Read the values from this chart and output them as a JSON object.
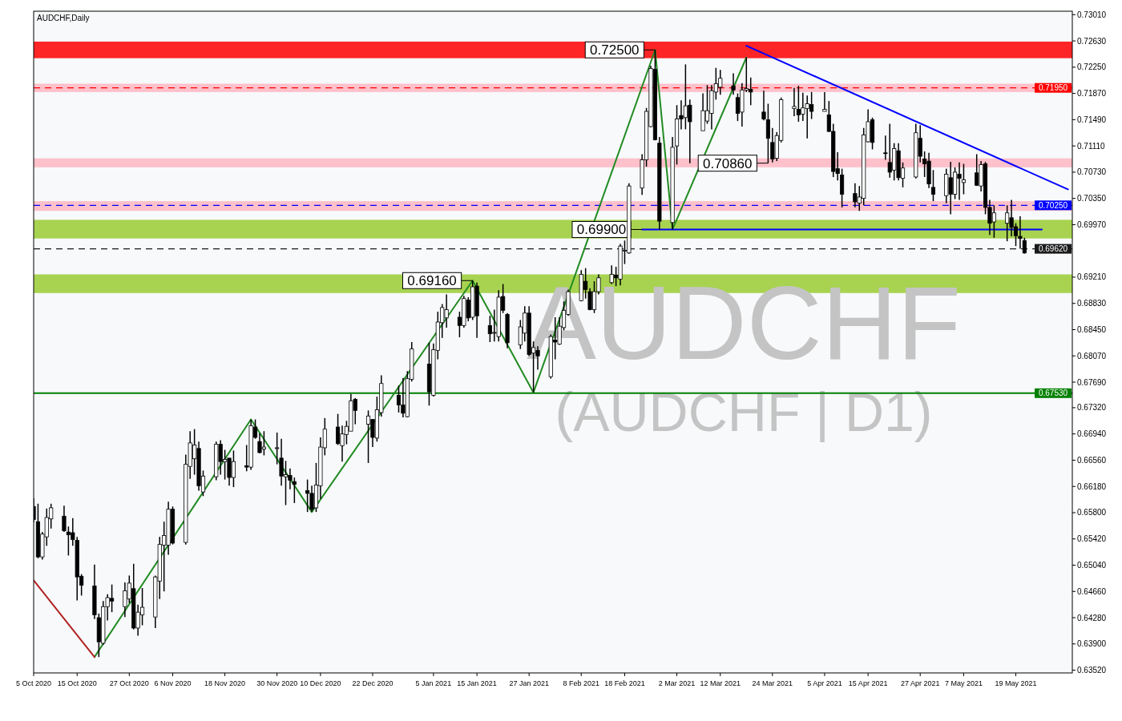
{
  "chart_data": {
    "type": "candlestick",
    "title": "AUDCHF,Daily",
    "x": [
      "2020-10-05",
      "2020-10-06",
      "2020-10-07",
      "2020-10-08",
      "2020-10-09",
      "2020-10-12",
      "2020-10-13",
      "2020-10-14",
      "2020-10-15",
      "2020-10-16",
      "2020-10-19",
      "2020-10-20",
      "2020-10-21",
      "2020-10-22",
      "2020-10-23",
      "2020-10-26",
      "2020-10-27",
      "2020-10-28",
      "2020-10-29",
      "2020-10-30",
      "2020-11-02",
      "2020-11-03",
      "2020-11-04",
      "2020-11-05",
      "2020-11-06",
      "2020-11-09",
      "2020-11-10",
      "2020-11-11",
      "2020-11-12",
      "2020-11-13",
      "2020-11-16",
      "2020-11-17",
      "2020-11-18",
      "2020-11-19",
      "2020-11-20",
      "2020-11-23",
      "2020-11-24",
      "2020-11-25",
      "2020-11-26",
      "2020-11-27",
      "2020-11-30",
      "2020-12-01",
      "2020-12-02",
      "2020-12-03",
      "2020-12-04",
      "2020-12-07",
      "2020-12-08",
      "2020-12-09",
      "2020-12-10",
      "2020-12-11",
      "2020-12-14",
      "2020-12-15",
      "2020-12-16",
      "2020-12-17",
      "2020-12-18",
      "2020-12-21",
      "2020-12-22",
      "2020-12-23",
      "2020-12-24",
      "2020-12-28",
      "2020-12-29",
      "2020-12-30",
      "2020-12-31",
      "2021-01-04",
      "2021-01-05",
      "2021-01-06",
      "2021-01-07",
      "2021-01-08",
      "2021-01-11",
      "2021-01-12",
      "2021-01-13",
      "2021-01-14",
      "2021-01-15",
      "2021-01-18",
      "2021-01-19",
      "2021-01-20",
      "2021-01-21",
      "2021-01-22",
      "2021-01-25",
      "2021-01-26",
      "2021-01-27",
      "2021-01-28",
      "2021-01-29",
      "2021-02-01",
      "2021-02-02",
      "2021-02-03",
      "2021-02-04",
      "2021-02-05",
      "2021-02-08",
      "2021-02-09",
      "2021-02-10",
      "2021-02-11",
      "2021-02-12",
      "2021-02-15",
      "2021-02-16",
      "2021-02-17",
      "2021-02-18",
      "2021-02-19",
      "2021-02-22",
      "2021-02-23",
      "2021-02-24",
      "2021-02-25",
      "2021-02-26",
      "2021-03-01",
      "2021-03-02",
      "2021-03-03",
      "2021-03-04",
      "2021-03-05",
      "2021-03-08",
      "2021-03-09",
      "2021-03-10",
      "2021-03-11",
      "2021-03-12",
      "2021-03-15",
      "2021-03-16",
      "2021-03-17",
      "2021-03-18",
      "2021-03-19",
      "2021-03-22",
      "2021-03-23",
      "2021-03-24",
      "2021-03-25",
      "2021-03-26",
      "2021-03-29",
      "2021-03-30",
      "2021-03-31",
      "2021-04-01",
      "2021-04-02",
      "2021-04-05",
      "2021-04-06",
      "2021-04-07",
      "2021-04-08",
      "2021-04-09",
      "2021-04-12",
      "2021-04-13",
      "2021-04-14",
      "2021-04-15",
      "2021-04-16",
      "2021-04-19",
      "2021-04-20",
      "2021-04-21",
      "2021-04-22",
      "2021-04-23",
      "2021-04-26",
      "2021-04-27",
      "2021-04-28",
      "2021-04-29",
      "2021-04-30",
      "2021-05-03",
      "2021-05-04",
      "2021-05-05",
      "2021-05-06",
      "2021-05-07",
      "2021-05-10",
      "2021-05-11",
      "2021-05-12",
      "2021-05-13",
      "2021-05-14",
      "2021-05-17",
      "2021-05-18",
      "2021-05-19",
      "2021-05-20",
      "2021-05-21"
    ],
    "ohlc": [
      [
        0.6589,
        0.6601,
        0.6566,
        0.657
      ],
      [
        0.6567,
        0.6593,
        0.6514,
        0.6516
      ],
      [
        0.6516,
        0.6552,
        0.6512,
        0.6549
      ],
      [
        0.6545,
        0.6586,
        0.6532,
        0.6573
      ],
      [
        0.6571,
        0.6593,
        0.6557,
        0.6587
      ],
      [
        0.6575,
        0.659,
        0.6552,
        0.6554
      ],
      [
        0.6552,
        0.656,
        0.6518,
        0.6548
      ],
      [
        0.6551,
        0.6572,
        0.6532,
        0.6541
      ],
      [
        0.654,
        0.6545,
        0.6453,
        0.6487
      ],
      [
        0.6488,
        0.6491,
        0.646,
        0.6475
      ],
      [
        0.6474,
        0.6505,
        0.6426,
        0.6432
      ],
      [
        0.6428,
        0.6434,
        0.6371,
        0.6393
      ],
      [
        0.6391,
        0.6452,
        0.6389,
        0.6444
      ],
      [
        0.6444,
        0.6462,
        0.6424,
        0.6457
      ],
      [
        0.6456,
        0.6476,
        0.6436,
        0.6452
      ],
      [
        0.6444,
        0.6479,
        0.6429,
        0.6467
      ],
      [
        0.6455,
        0.6489,
        0.6449,
        0.6478
      ],
      [
        0.647,
        0.6506,
        0.6411,
        0.6413
      ],
      [
        0.6413,
        0.6447,
        0.6402,
        0.6436
      ],
      [
        0.6432,
        0.6471,
        0.6417,
        0.6443
      ],
      [
        0.6429,
        0.6489,
        0.6413,
        0.6487
      ],
      [
        0.6481,
        0.6545,
        0.6455,
        0.6534
      ],
      [
        0.6533,
        0.6567,
        0.6466,
        0.6547
      ],
      [
        0.6533,
        0.6596,
        0.6519,
        0.6585
      ],
      [
        0.6585,
        0.6589,
        0.6534,
        0.6536
      ],
      [
        0.6537,
        0.6664,
        0.6534,
        0.665
      ],
      [
        0.6647,
        0.6698,
        0.6629,
        0.6681
      ],
      [
        0.6658,
        0.6701,
        0.6635,
        0.6678
      ],
      [
        0.6673,
        0.6683,
        0.6612,
        0.6619
      ],
      [
        0.661,
        0.6641,
        0.6604,
        0.6633
      ],
      [
        0.6632,
        0.6683,
        0.6627,
        0.6679
      ],
      [
        0.6679,
        0.6685,
        0.6635,
        0.6654
      ],
      [
        0.6654,
        0.6671,
        0.6628,
        0.6657
      ],
      [
        0.6659,
        0.6659,
        0.6619,
        0.6631
      ],
      [
        0.6631,
        0.667,
        0.6617,
        0.6654
      ],
      [
        0.6648,
        0.6678,
        0.664,
        0.6646
      ],
      [
        0.6646,
        0.6715,
        0.6642,
        0.6706
      ],
      [
        0.6704,
        0.6715,
        0.6687,
        0.6689
      ],
      [
        0.6683,
        0.6695,
        0.6666,
        0.6667
      ],
      [
        0.6672,
        0.6698,
        0.6663,
        0.6675
      ],
      [
        0.6673,
        0.6696,
        0.665,
        0.6674
      ],
      [
        0.6659,
        0.6687,
        0.6619,
        0.6633
      ],
      [
        0.6632,
        0.6655,
        0.6591,
        0.6635
      ],
      [
        0.6634,
        0.6644,
        0.6614,
        0.6627
      ],
      [
        0.6625,
        0.6631,
        0.6594,
        0.6621
      ],
      [
        0.6612,
        0.6628,
        0.6581,
        0.6608
      ],
      [
        0.6608,
        0.6619,
        0.6581,
        0.6585
      ],
      [
        0.6587,
        0.6652,
        0.6581,
        0.662
      ],
      [
        0.6619,
        0.6689,
        0.66,
        0.6675
      ],
      [
        0.6674,
        0.6717,
        0.6663,
        0.6701
      ],
      [
        0.6704,
        0.6723,
        0.6678,
        0.668
      ],
      [
        0.6677,
        0.6706,
        0.6654,
        0.6694
      ],
      [
        0.6693,
        0.6713,
        0.6679,
        0.6705
      ],
      [
        0.6698,
        0.6752,
        0.6698,
        0.6742
      ],
      [
        0.6744,
        0.6746,
        0.6708,
        0.6728
      ],
      [
        0.6708,
        0.6728,
        0.6652,
        0.672
      ],
      [
        0.6715,
        0.6715,
        0.6675,
        0.6689
      ],
      [
        0.6688,
        0.6748,
        0.6683,
        0.6729
      ],
      [
        0.6725,
        0.6779,
        0.6719,
        0.6767
      ],
      [
        0.675,
        0.6764,
        0.6725,
        0.6736
      ],
      [
        0.6736,
        0.6775,
        0.6718,
        0.6724
      ],
      [
        0.6719,
        0.6785,
        0.6718,
        0.6774
      ],
      [
        0.6773,
        0.6827,
        0.677,
        0.6817
      ],
      [
        0.6795,
        0.6826,
        0.6735,
        0.6755
      ],
      [
        0.675,
        0.6825,
        0.6748,
        0.6816
      ],
      [
        0.6815,
        0.6871,
        0.6802,
        0.6856
      ],
      [
        0.6855,
        0.6882,
        0.6833,
        0.6877
      ],
      [
        0.6862,
        0.6896,
        0.6848,
        0.6874
      ],
      [
        0.6863,
        0.6871,
        0.6834,
        0.6851
      ],
      [
        0.6851,
        0.6894,
        0.6848,
        0.689
      ],
      [
        0.6888,
        0.6892,
        0.6857,
        0.6862
      ],
      [
        0.6863,
        0.6916,
        0.6859,
        0.6907
      ],
      [
        0.6908,
        0.6913,
        0.6833,
        0.6865
      ],
      [
        0.6851,
        0.6865,
        0.6827,
        0.6839
      ],
      [
        0.684,
        0.6874,
        0.6828,
        0.6841
      ],
      [
        0.6835,
        0.6902,
        0.6828,
        0.6892
      ],
      [
        0.6893,
        0.6911,
        0.6869,
        0.6873
      ],
      [
        0.6867,
        0.6869,
        0.6818,
        0.6826
      ],
      [
        0.6823,
        0.6859,
        0.6817,
        0.6849
      ],
      [
        0.684,
        0.6879,
        0.6828,
        0.6869
      ],
      [
        0.6869,
        0.6879,
        0.6807,
        0.6809
      ],
      [
        0.6811,
        0.6828,
        0.6754,
        0.6819
      ],
      [
        0.6815,
        0.6821,
        0.6787,
        0.6807
      ],
      [
        0.6777,
        0.6838,
        0.6774,
        0.6835
      ],
      [
        0.683,
        0.6863,
        0.6802,
        0.6827
      ],
      [
        0.6824,
        0.6863,
        0.6823,
        0.685
      ],
      [
        0.6848,
        0.6886,
        0.6844,
        0.6873
      ],
      [
        0.6867,
        0.6903,
        0.6865,
        0.69
      ],
      [
        0.6887,
        0.6931,
        0.6886,
        0.6925
      ],
      [
        0.6915,
        0.6934,
        0.689,
        0.6903
      ],
      [
        0.69,
        0.6905,
        0.6873,
        0.6874
      ],
      [
        0.6874,
        0.6915,
        0.6869,
        0.69
      ],
      [
        0.69,
        0.6925,
        0.6896,
        0.692
      ],
      [
        0.6913,
        0.6938,
        0.6911,
        0.6925
      ],
      [
        0.6924,
        0.6936,
        0.6908,
        0.692
      ],
      [
        0.6918,
        0.6969,
        0.6909,
        0.6966
      ],
      [
        0.6959,
        0.6974,
        0.694,
        0.696
      ],
      [
        0.6956,
        0.7057,
        0.6955,
        0.7053
      ],
      [
        0.705,
        0.7099,
        0.704,
        0.7091
      ],
      [
        0.7091,
        0.7166,
        0.7081,
        0.7161
      ],
      [
        0.7139,
        0.7227,
        0.7138,
        0.7223
      ],
      [
        0.7222,
        0.725,
        0.7119,
        0.712
      ],
      [
        0.7115,
        0.7124,
        0.699,
        0.7002
      ],
      [
        0.7,
        0.7124,
        0.699,
        0.7109
      ],
      [
        0.7111,
        0.717,
        0.7084,
        0.715
      ],
      [
        0.7155,
        0.7177,
        0.7135,
        0.715
      ],
      [
        0.7152,
        0.7229,
        0.7135,
        0.7169
      ],
      [
        0.717,
        0.7178,
        0.7086,
        0.7146
      ],
      [
        0.7133,
        0.7187,
        0.7133,
        0.7162
      ],
      [
        0.7147,
        0.7199,
        0.7143,
        0.7162
      ],
      [
        0.7158,
        0.7199,
        0.7135,
        0.7191
      ],
      [
        0.7189,
        0.7224,
        0.7178,
        0.7201
      ],
      [
        0.7196,
        0.7221,
        0.7185,
        0.7209
      ],
      [
        0.7198,
        0.7216,
        0.7185,
        0.7192
      ],
      [
        0.7181,
        0.7187,
        0.7147,
        0.7158
      ],
      [
        0.716,
        0.7202,
        0.7139,
        0.7192
      ],
      [
        0.7192,
        0.7239,
        0.7189,
        0.7194
      ],
      [
        0.7193,
        0.721,
        0.717,
        0.7189
      ],
      [
        0.716,
        0.7191,
        0.7148,
        0.715
      ],
      [
        0.7149,
        0.7172,
        0.7086,
        0.7122
      ],
      [
        0.7116,
        0.7137,
        0.7087,
        0.7092
      ],
      [
        0.7093,
        0.7131,
        0.7089,
        0.7126
      ],
      [
        0.7119,
        0.7181,
        0.7116,
        0.7178
      ],
      [
        0.7165,
        0.7195,
        0.7154,
        0.7168
      ],
      [
        0.7164,
        0.7198,
        0.7146,
        0.7156
      ],
      [
        0.7157,
        0.7188,
        0.7147,
        0.7166
      ],
      [
        0.7165,
        0.7184,
        0.7122,
        0.7172
      ],
      [
        0.7171,
        0.7189,
        0.715,
        0.7161
      ],
      [
        0.7161,
        0.7189,
        0.7161,
        0.7164
      ],
      [
        0.7156,
        0.7176,
        0.7131,
        0.7132
      ],
      [
        0.7132,
        0.7143,
        0.7066,
        0.7074
      ],
      [
        0.7078,
        0.7102,
        0.7061,
        0.7071
      ],
      [
        0.7069,
        0.7078,
        0.7022,
        0.7041
      ],
      [
        0.7042,
        0.7057,
        0.7022,
        0.703
      ],
      [
        0.7028,
        0.7053,
        0.7017,
        0.7037
      ],
      [
        0.7035,
        0.7137,
        0.7025,
        0.7127
      ],
      [
        0.7117,
        0.7164,
        0.7116,
        0.7146
      ],
      [
        0.7149,
        0.7152,
        0.7106,
        0.7116
      ],
      [
        0.7101,
        0.7126,
        0.7091,
        0.71
      ],
      [
        0.7087,
        0.7143,
        0.7065,
        0.7073
      ],
      [
        0.7076,
        0.7115,
        0.7061,
        0.7107
      ],
      [
        0.7104,
        0.7115,
        0.7061,
        0.7065
      ],
      [
        0.7064,
        0.7087,
        0.7051,
        0.7079
      ],
      [
        0.7066,
        0.7143,
        0.7064,
        0.713
      ],
      [
        0.7122,
        0.7141,
        0.7087,
        0.7096
      ],
      [
        0.7092,
        0.7103,
        0.7066,
        0.7085
      ],
      [
        0.7089,
        0.7101,
        0.705,
        0.7056
      ],
      [
        0.7051,
        0.7076,
        0.7031,
        0.7041
      ],
      [
        0.7039,
        0.7078,
        0.7028,
        0.707
      ],
      [
        0.7065,
        0.7088,
        0.7012,
        0.7041
      ],
      [
        0.7041,
        0.708,
        0.7034,
        0.7073
      ],
      [
        0.707,
        0.7087,
        0.7033,
        0.7064
      ],
      [
        0.7058,
        0.7085,
        0.7041,
        0.7062
      ],
      [
        0.7072,
        0.7099,
        0.7053,
        0.7054
      ],
      [
        0.7053,
        0.7089,
        0.7045,
        0.7084
      ],
      [
        0.7085,
        0.7088,
        0.7012,
        0.7022
      ],
      [
        0.7022,
        0.7033,
        0.6982,
        0.6999
      ],
      [
        0.7001,
        0.7025,
        0.6978,
        0.7014
      ],
      [
        0.6999,
        0.7025,
        0.6973,
        0.7014
      ],
      [
        0.7007,
        0.7033,
        0.698,
        0.6993
      ],
      [
        0.6994,
        0.6999,
        0.6966,
        0.6981
      ],
      [
        0.698,
        0.7009,
        0.6962,
        0.6977
      ],
      [
        0.6974,
        0.6978,
        0.6955,
        0.6956
      ]
    ],
    "series": [
      {
        "type": "line",
        "color": "#228b22",
        "x": [
          "2020-10-19",
          "2020-11-24",
          "2020-12-08",
          "2021-01-14",
          "2021-01-28",
          "2021-02-25",
          "2021-03-01",
          "2021-03-18"
        ],
        "values": [
          0.6371,
          0.6715,
          0.6581,
          0.6916,
          0.6754,
          0.725,
          0.699,
          0.7239
        ]
      },
      {
        "type": "line",
        "color": "#b22222",
        "x": [
          "2020-10-05",
          "2020-10-19"
        ],
        "values": [
          0.6482,
          0.6371
        ]
      },
      {
        "type": "line",
        "color": "#0000ff",
        "x": [
          "2021-03-18",
          "2021-05-31"
        ],
        "values": [
          0.7256,
          0.7048
        ]
      },
      {
        "type": "line",
        "color": "#0000ff",
        "x": [
          "2021-02-22",
          "2021-05-25"
        ],
        "values": [
          0.699,
          0.699
        ]
      }
    ],
    "xlim": [
      "2020-10-05",
      "2021-06-01"
    ],
    "xticks": [
      {
        "value": "2020-10-05",
        "label": "5 Oct 2020"
      },
      {
        "value": "2020-10-15",
        "label": "15 Oct 2020"
      },
      {
        "value": "2020-10-27",
        "label": "27 Oct 2020"
      },
      {
        "value": "2020-11-06",
        "label": "6 Nov 2020"
      },
      {
        "value": "2020-11-18",
        "label": "18 Nov 2020"
      },
      {
        "value": "2020-11-30",
        "label": "30 Nov 2020"
      },
      {
        "value": "2020-12-10",
        "label": "10 Dec 2020"
      },
      {
        "value": "2020-12-22",
        "label": "22 Dec 2020"
      },
      {
        "value": "2021-01-05",
        "label": "5 Jan 2021"
      },
      {
        "value": "2021-01-15",
        "label": "15 Jan 2021"
      },
      {
        "value": "2021-01-27",
        "label": "27 Jan 2021"
      },
      {
        "value": "2021-02-08",
        "label": "8 Feb 2021"
      },
      {
        "value": "2021-02-18",
        "label": "18 Feb 2021"
      },
      {
        "value": "2021-03-02",
        "label": "2 Mar 2021"
      },
      {
        "value": "2021-03-12",
        "label": "12 Mar 2021"
      },
      {
        "value": "2021-03-24",
        "label": "24 Mar 2021"
      },
      {
        "value": "2021-04-05",
        "label": "5 Apr 2021"
      },
      {
        "value": "2021-04-15",
        "label": "15 Apr 2021"
      },
      {
        "value": "2021-04-27",
        "label": "27 Apr 2021"
      },
      {
        "value": "2021-05-07",
        "label": "7 May 2021"
      },
      {
        "value": "2021-05-19",
        "label": "19 May 2021"
      }
    ],
    "ylim": [
      0.6348,
      0.7306
    ],
    "yticks": [
      {
        "value": 0.7301,
        "label": "0.73010"
      },
      {
        "value": 0.7263,
        "label": "0.72630"
      },
      {
        "value": 0.7225,
        "label": "0.72250"
      },
      {
        "value": 0.7187,
        "label": "0.71870"
      },
      {
        "value": 0.7149,
        "label": "0.71490"
      },
      {
        "value": 0.7111,
        "label": "0.71110"
      },
      {
        "value": 0.7073,
        "label": "0.70730"
      },
      {
        "value": 0.7035,
        "label": "0.70350"
      },
      {
        "value": 0.6997,
        "label": "0.69970"
      },
      {
        "value": 0.6921,
        "label": "0.69210"
      },
      {
        "value": 0.6883,
        "label": "0.68830"
      },
      {
        "value": 0.6845,
        "label": "0.68450"
      },
      {
        "value": 0.6807,
        "label": "0.68070"
      },
      {
        "value": 0.6769,
        "label": "0.67690"
      },
      {
        "value": 0.6732,
        "label": "0.67320"
      },
      {
        "value": 0.6694,
        "label": "0.66940"
      },
      {
        "value": 0.6656,
        "label": "0.66560"
      },
      {
        "value": 0.6618,
        "label": "0.66180"
      },
      {
        "value": 0.658,
        "label": "0.65800"
      },
      {
        "value": 0.6542,
        "label": "0.65420"
      },
      {
        "value": 0.6504,
        "label": "0.65040"
      },
      {
        "value": 0.6466,
        "label": "0.64660"
      },
      {
        "value": 0.6428,
        "label": "0.64280"
      },
      {
        "value": 0.639,
        "label": "0.63900"
      },
      {
        "value": 0.6352,
        "label": "0.63520"
      }
    ],
    "ref_lines": [
      {
        "axis": "y",
        "value": 0.7195,
        "label": "0.71950",
        "color": "#ff0000",
        "line_style": "dashed"
      },
      {
        "axis": "y",
        "value": 0.7025,
        "label": "0.70250",
        "color": "#0000ff",
        "line_style": "dashed"
      },
      {
        "axis": "y",
        "value": 0.6962,
        "label": "0.69620",
        "color": "#1a1a1a",
        "line_style": "dashed"
      },
      {
        "axis": "y",
        "value": 0.6753,
        "label": "0.67530",
        "color": "#008000",
        "line_style": "solid"
      }
    ],
    "bands": [
      {
        "axis": "y",
        "from": 0.7238,
        "to": 0.7262,
        "color": "#ff0000"
      },
      {
        "axis": "y",
        "from": 0.7189,
        "to": 0.7201,
        "color": "#ffb6c1"
      },
      {
        "axis": "y",
        "from": 0.708,
        "to": 0.7093,
        "color": "#ffb6c1"
      },
      {
        "axis": "y",
        "from": 0.7017,
        "to": 0.7031,
        "color": "#ffb6c1"
      },
      {
        "axis": "y",
        "from": 0.6977,
        "to": 0.7004,
        "color": "#9acd32"
      },
      {
        "axis": "y",
        "from": 0.6898,
        "to": 0.6925,
        "color": "#9acd32"
      }
    ],
    "annotations": [
      "AUDCHF",
      "(AUDCHF | D1)",
      {
        "text": "0.72500",
        "x": "2021-02-25",
        "y": 0.725
      },
      {
        "text": "0.70860",
        "x": "2021-03-23",
        "y": 0.7086
      },
      {
        "text": "0.69900",
        "x": "2021-02-22",
        "y": 0.699
      },
      {
        "text": "0.69160",
        "x": "2021-01-14",
        "y": 0.6916
      }
    ]
  }
}
